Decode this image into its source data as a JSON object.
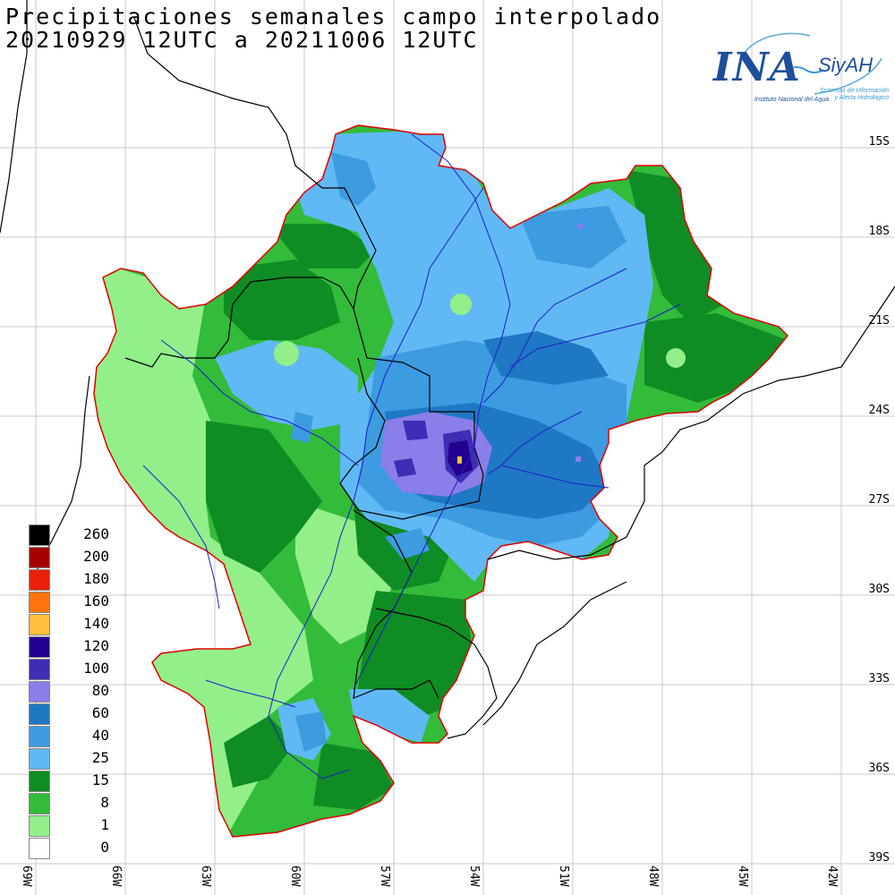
{
  "title": {
    "line1": "Precipitaciones semanales campo interpolado",
    "line2": "20210929 12UTC a 20211006 12UTC"
  },
  "logo": {
    "main": "INA",
    "brand": "SiyAH",
    "subtitle": "Instituto Nacional del Agua",
    "tagline_1": "Sistemas de Información",
    "tagline_2": "y Alerta Hidrológico"
  },
  "lat_labels": [
    "15S",
    "18S",
    "21S",
    "24S",
    "27S",
    "30S",
    "33S",
    "36S",
    "39S"
  ],
  "lon_labels": [
    "69W",
    "66W",
    "63W",
    "60W",
    "57W",
    "54W",
    "51W",
    "48W",
    "45W",
    "42W"
  ],
  "legend": [
    {
      "label": "260",
      "color": "#000000"
    },
    {
      "label": "200",
      "color": "#a50000"
    },
    {
      "label": "180",
      "color": "#e8200c"
    },
    {
      "label": "160",
      "color": "#ff7410"
    },
    {
      "label": "140",
      "color": "#ffbf3c"
    },
    {
      "label": "120",
      "color": "#23008f"
    },
    {
      "label": "100",
      "color": "#3e2db5"
    },
    {
      "label": "80",
      "color": "#8a7ee8"
    },
    {
      "label": "60",
      "color": "#1f78c4"
    },
    {
      "label": "40",
      "color": "#3d9be0"
    },
    {
      "label": "25",
      "color": "#60b9f4"
    },
    {
      "label": "15",
      "color": "#0f8c24"
    },
    {
      "label": "8",
      "color": "#33bb3a"
    },
    {
      "label": "1",
      "color": "#92ef8a"
    },
    {
      "label": "0",
      "color": "#ffffff"
    }
  ],
  "colors": {
    "basin_border": "#e00000",
    "rivers": "#1e1ec8",
    "borders": "#000000",
    "grid": "#c8c8c8"
  }
}
